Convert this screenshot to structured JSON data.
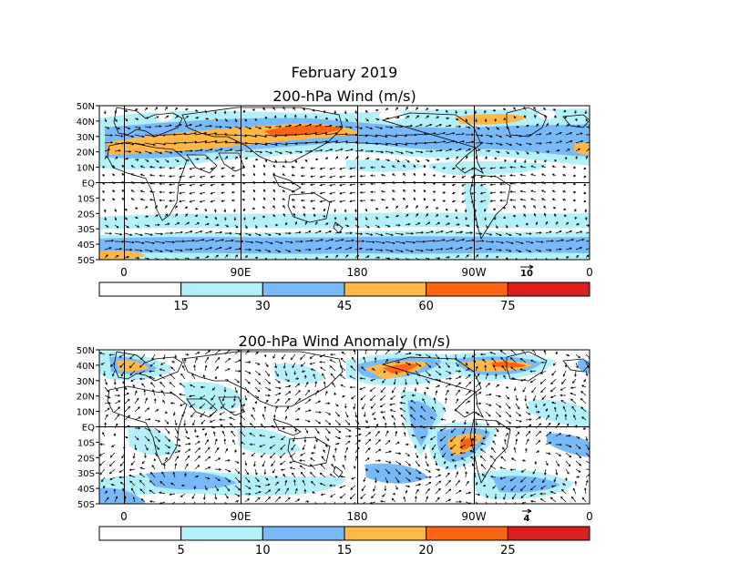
{
  "title": "February 2019",
  "panels": [
    {
      "title": "200-hPa Wind (m/s)",
      "lat_labels": [
        "50N",
        "40N",
        "30N",
        "20N",
        "10N",
        "EQ",
        "10S",
        "20S",
        "30S",
        "40S",
        "50S"
      ],
      "lon_labels": [
        "0",
        "90E",
        "180",
        "90W",
        "0"
      ],
      "ref_vector": "10",
      "colorbar": {
        "ticks": [
          "15",
          "30",
          "45",
          "60",
          "75"
        ],
        "colors": [
          "#ffffff",
          "#b4f0fa",
          "#78b9fa",
          "#ffb846",
          "#ff6414",
          "#dc1e1e"
        ]
      }
    },
    {
      "title": "200-hPa Wind Anomaly (m/s)",
      "lat_labels": [
        "50N",
        "40N",
        "30N",
        "20N",
        "10N",
        "EQ",
        "10S",
        "20S",
        "30S",
        "40S",
        "50S"
      ],
      "lon_labels": [
        "0",
        "90E",
        "180",
        "90W",
        "0"
      ],
      "ref_vector": "4",
      "colorbar": {
        "ticks": [
          "5",
          "10",
          "15",
          "20",
          "25"
        ],
        "colors": [
          "#ffffff",
          "#b4f0fa",
          "#78b9fa",
          "#ffb846",
          "#ff6414",
          "#dc1e1e"
        ]
      }
    }
  ]
}
